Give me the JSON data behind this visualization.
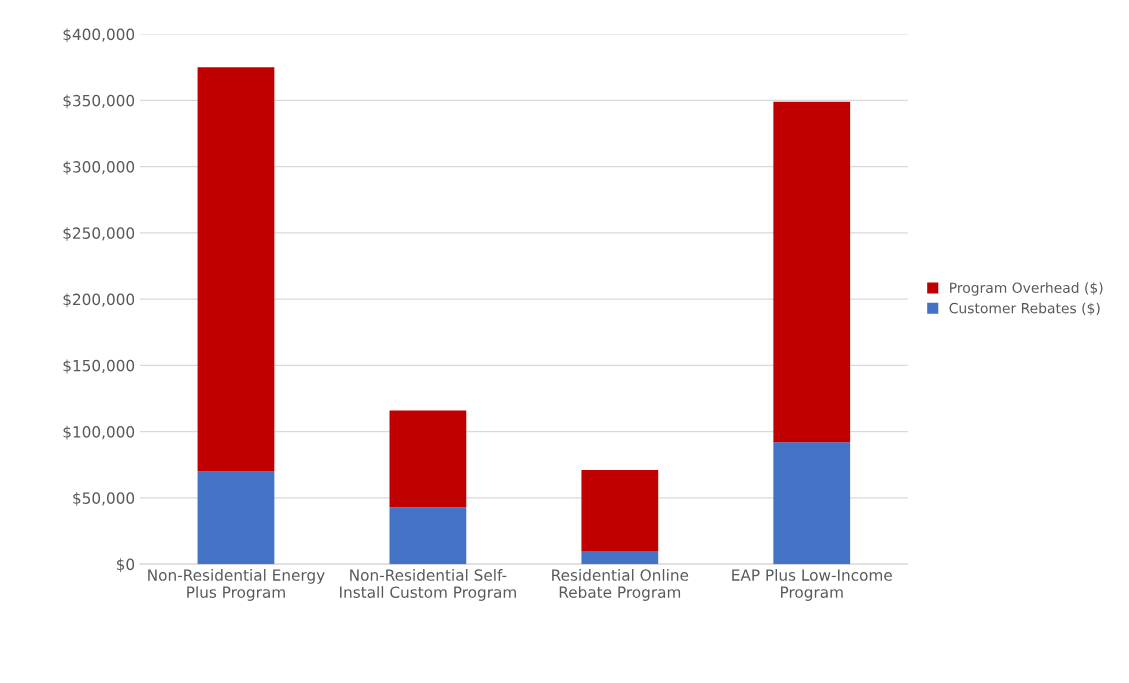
{
  "chart_data": {
    "type": "bar",
    "stacked": true,
    "categories": [
      "Non-Residential Energy\nPlus Program",
      "Non-Residential Self-\nInstall Custom Program",
      "Residential Online\nRebate Program",
      "EAP Plus Low-Income\nProgram"
    ],
    "series": [
      {
        "name": "Customer Rebates ($)",
        "color": "#4472c4",
        "values": [
          70000,
          43000,
          10000,
          92000
        ]
      },
      {
        "name": "Program Overhead ($)",
        "color": "#c00000",
        "values": [
          305000,
          73000,
          61000,
          257000
        ]
      }
    ],
    "ylim": [
      0,
      400000
    ],
    "yticks": [
      {
        "value": 0,
        "label": "$0"
      },
      {
        "value": 50000,
        "label": "$50,000"
      },
      {
        "value": 100000,
        "label": "$100,000"
      },
      {
        "value": 150000,
        "label": "$150,000"
      },
      {
        "value": 200000,
        "label": "$200,000"
      },
      {
        "value": 250000,
        "label": "$250,000"
      },
      {
        "value": 300000,
        "label": "$300,000"
      },
      {
        "value": 350000,
        "label": "$350,000"
      },
      {
        "value": 400000,
        "label": "$400,000"
      }
    ],
    "grid": "y",
    "legend": "right"
  }
}
